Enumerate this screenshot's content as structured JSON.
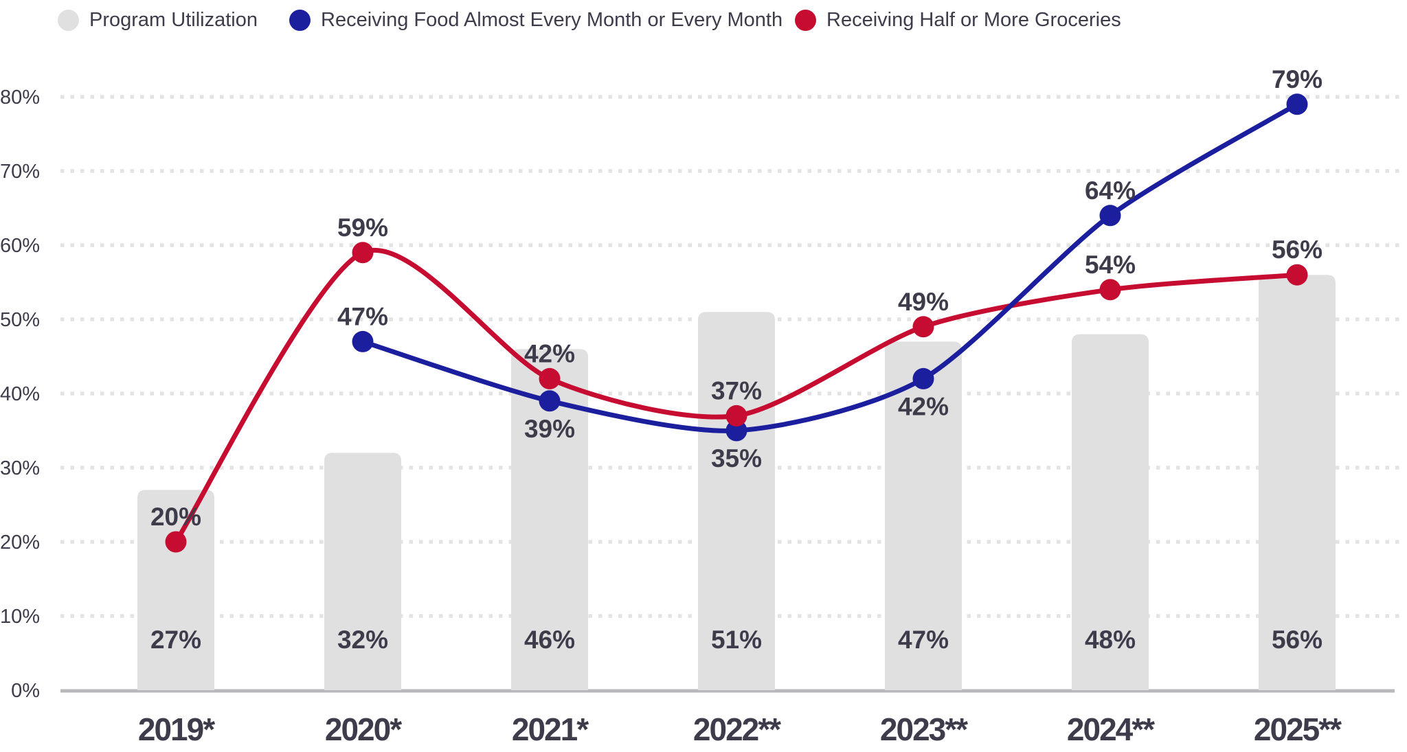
{
  "legend": {
    "items": [
      {
        "label": "Program Utilization",
        "color": "#E0E0E0"
      },
      {
        "label": "Receiving Food Almost Every Month or Every Month",
        "color": "#1B1F9E"
      },
      {
        "label": "Receiving Half or More Groceries",
        "color": "#C60C30"
      }
    ]
  },
  "chart_data": {
    "type": "combo-bar-line",
    "categories": [
      "2019*",
      "2020*",
      "2021*",
      "2022**",
      "2023**",
      "2024**",
      "2025**"
    ],
    "bar_series": {
      "name": "Program Utilization",
      "color": "#E0E0E0",
      "values": [
        27,
        32,
        46,
        51,
        47,
        48,
        56
      ],
      "value_labels": [
        "27%",
        "32%",
        "46%",
        "51%",
        "47%",
        "48%",
        "56%"
      ]
    },
    "line_series": [
      {
        "name": "Receiving Food Almost Every Month or Every Month",
        "color": "#1B1F9E",
        "values": [
          null,
          47,
          39,
          35,
          42,
          64,
          79
        ],
        "value_labels": [
          null,
          "47%",
          "39%",
          "35%",
          "42%",
          "64%",
          "79%"
        ],
        "label_positions": [
          null,
          "above",
          "below",
          "below",
          "below",
          "above",
          "above"
        ]
      },
      {
        "name": "Receiving Half or More Groceries",
        "color": "#C60C30",
        "values": [
          20,
          59,
          42,
          37,
          49,
          54,
          56
        ],
        "value_labels": [
          "20%",
          "59%",
          "42%",
          "37%",
          "49%",
          "54%",
          "56%"
        ],
        "label_positions": [
          "above",
          "above",
          "above",
          "above",
          "above",
          "above",
          "above"
        ]
      }
    ],
    "yaxis": {
      "min": 0,
      "max": 80,
      "tick_step": 10,
      "ticks": [
        "0%",
        "10%",
        "20%",
        "30%",
        "40%",
        "50%",
        "60%",
        "70%",
        "80%"
      ],
      "grid": "dotted horizontal"
    },
    "layout_hints": {
      "legend_position": "top-left",
      "bars_behind_lines": true,
      "text_color": "#3E3C4B",
      "gridline_color": "#E3E3E3",
      "axis_line_color": "#B9B9BC",
      "background_color": "#FFFFFF"
    }
  }
}
